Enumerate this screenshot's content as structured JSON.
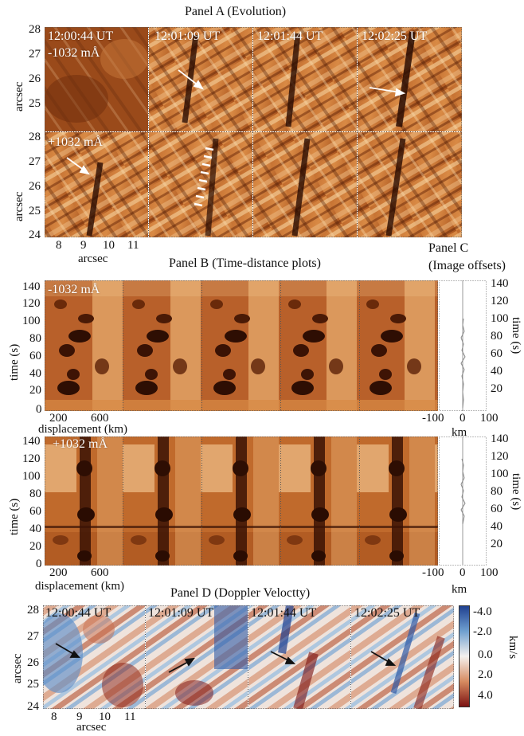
{
  "figure": {
    "panel_a": {
      "title": "Panel A (Evolution)",
      "y_label": "arcsec",
      "x_label": "arcsec",
      "y_ticks_top": [
        "28",
        "27",
        "26",
        "25"
      ],
      "y_ticks_bottom": [
        "28",
        "27",
        "26",
        "25",
        "24"
      ],
      "x_ticks": [
        "8",
        "9",
        "10",
        "11"
      ],
      "timestamps": [
        "12:00:44 UT",
        "12:01:09 UT",
        "12:01:44 UT",
        "12:02:25 UT"
      ],
      "row_labels": [
        "-1032 mÅ",
        "+1032 mÅ"
      ]
    },
    "panel_b": {
      "title": "Panel  B (Time-distance plots)",
      "y_label": "time (s)",
      "x_label": "displacement (km)",
      "y_ticks": [
        "140",
        "120",
        "100",
        "80",
        "60",
        "40",
        "20",
        "0"
      ],
      "x_ticks": [
        "200",
        "600"
      ],
      "row_labels": [
        "-1032 mÅ",
        "+1032 mÅ"
      ]
    },
    "panel_c": {
      "title_line1": "Panel  C",
      "title_line2": "(Image offsets)",
      "y_label": "time (s)",
      "x_label": "km",
      "y_ticks": [
        "140",
        "120",
        "100",
        "80",
        "60",
        "40",
        "20"
      ],
      "x_ticks": [
        "-100",
        "0",
        "100"
      ]
    },
    "panel_d": {
      "title": "Panel  D (Doppler Veloctty)",
      "y_label": "arcsec",
      "x_label": "arcsec",
      "y_ticks": [
        "28",
        "27",
        "26",
        "25",
        "24"
      ],
      "x_ticks": [
        "8",
        "9",
        "10",
        "11"
      ],
      "timestamps": [
        "12:00:44 UT",
        "12:01:09 UT",
        "12:01:44 UT",
        "12:02:25 UT"
      ],
      "colorbar_label": "km/s",
      "colorbar_ticks": [
        "-4.0",
        "-2.0",
        "0.0",
        "2.0",
        "4.0"
      ],
      "colorbar_colors": [
        "#1f3f8f",
        "#6f9fd0",
        "#f4f1ee",
        "#d68a60",
        "#7a1010"
      ]
    },
    "colors": {
      "heat_dark": "#4a1a06",
      "heat_mid": "#b55a22",
      "heat_light": "#f3c990",
      "arrow_white": "#ffffff",
      "arrow_black": "#111111"
    }
  }
}
